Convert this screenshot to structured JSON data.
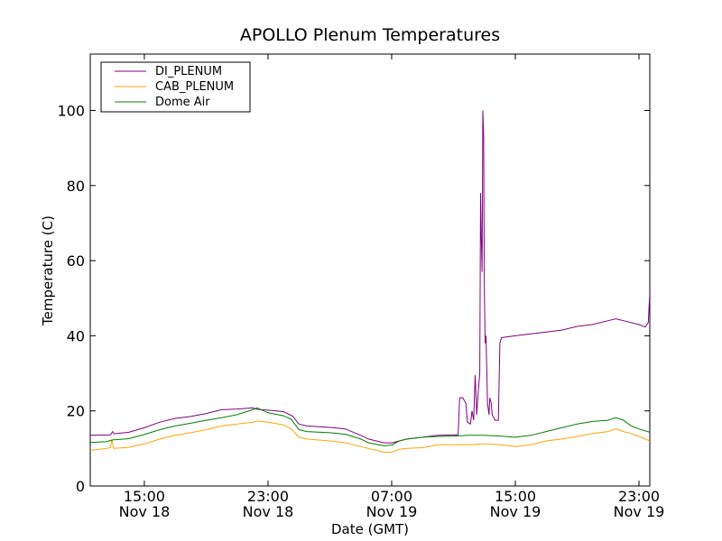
{
  "chart_data": {
    "type": "line",
    "title": "APOLLO Plenum Temperatures",
    "xlabel": "Date (GMT)",
    "ylabel": "Temperature (C)",
    "x_unit": "hours since Nov 18 00:00 GMT",
    "xlim": [
      11.5,
      47.7
    ],
    "ylim": [
      0,
      115
    ],
    "yticks": [
      0,
      20,
      40,
      60,
      80,
      100
    ],
    "xticks": [
      {
        "x": 15,
        "time": "15:00",
        "date": "Nov 18"
      },
      {
        "x": 23,
        "time": "23:00",
        "date": "Nov 18"
      },
      {
        "x": 31,
        "time": "07:00",
        "date": "Nov 19"
      },
      {
        "x": 39,
        "time": "15:00",
        "date": "Nov 19"
      },
      {
        "x": 47,
        "time": "23:00",
        "date": "Nov 19"
      }
    ],
    "legend_position": "top-left",
    "series": [
      {
        "name": "DI_PLENUM",
        "color": "#800080",
        "points": [
          [
            11.5,
            13.5
          ],
          [
            12.8,
            13.6
          ],
          [
            12.95,
            14.5
          ],
          [
            13.05,
            13.9
          ],
          [
            14,
            14.3
          ],
          [
            15,
            15.5
          ],
          [
            16,
            17.0
          ],
          [
            17,
            18.0
          ],
          [
            18,
            18.5
          ],
          [
            19,
            19.3
          ],
          [
            20,
            20.3
          ],
          [
            21,
            20.5
          ],
          [
            22,
            20.8
          ],
          [
            22.3,
            20.4
          ],
          [
            23,
            20.2
          ],
          [
            24,
            19.8
          ],
          [
            24.6,
            18.6
          ],
          [
            25,
            16.5
          ],
          [
            25.5,
            16.0
          ],
          [
            27,
            15.6
          ],
          [
            28,
            15.2
          ],
          [
            29,
            13.5
          ],
          [
            29.5,
            12.5
          ],
          [
            30.5,
            11.5
          ],
          [
            31,
            11.5
          ],
          [
            31.5,
            12.0
          ],
          [
            32,
            12.5
          ],
          [
            33,
            13.0
          ],
          [
            34,
            13.5
          ],
          [
            35,
            13.6
          ],
          [
            35.3,
            13.6
          ],
          [
            35.4,
            23.5
          ],
          [
            35.6,
            23.5
          ],
          [
            35.8,
            22.0
          ],
          [
            35.9,
            17.0
          ],
          [
            36.1,
            16.5
          ],
          [
            36.2,
            20.0
          ],
          [
            36.3,
            17.5
          ],
          [
            36.4,
            29.5
          ],
          [
            36.5,
            19.0
          ],
          [
            36.6,
            25.0
          ],
          [
            36.7,
            30.0
          ],
          [
            36.75,
            78.0
          ],
          [
            36.8,
            66.0
          ],
          [
            36.85,
            57.0
          ],
          [
            36.9,
            100.0
          ],
          [
            36.95,
            93.0
          ],
          [
            37.0,
            52.0
          ],
          [
            37.05,
            38.0
          ],
          [
            37.1,
            40.0
          ],
          [
            37.2,
            22.0
          ],
          [
            37.3,
            19.0
          ],
          [
            37.35,
            23.5
          ],
          [
            37.45,
            22.0
          ],
          [
            37.5,
            19.0
          ],
          [
            37.7,
            17.5
          ],
          [
            37.9,
            17.5
          ],
          [
            38.0,
            38.0
          ],
          [
            38.1,
            39.5
          ],
          [
            39,
            40.0
          ],
          [
            40,
            40.5
          ],
          [
            41,
            41.0
          ],
          [
            42,
            41.5
          ],
          [
            43,
            42.5
          ],
          [
            44,
            43.0
          ],
          [
            45,
            44.0
          ],
          [
            45.5,
            44.5
          ],
          [
            46,
            44.0
          ],
          [
            47,
            43.0
          ],
          [
            47.4,
            42.3
          ],
          [
            47.6,
            43.5
          ],
          [
            47.7,
            51.5
          ]
        ]
      },
      {
        "name": "CAB_PLENUM",
        "color": "#ffa500",
        "points": [
          [
            11.5,
            9.5
          ],
          [
            12.6,
            10.0
          ],
          [
            12.8,
            10.2
          ],
          [
            12.9,
            12.5
          ],
          [
            13.0,
            10.0
          ],
          [
            14,
            10.3
          ],
          [
            15,
            11.2
          ],
          [
            16,
            12.5
          ],
          [
            17,
            13.5
          ],
          [
            18,
            14.2
          ],
          [
            19,
            15.0
          ],
          [
            20,
            16.0
          ],
          [
            21,
            16.5
          ],
          [
            22,
            17.0
          ],
          [
            22.3,
            17.3
          ],
          [
            23,
            17.0
          ],
          [
            24,
            16.3
          ],
          [
            24.5,
            15.2
          ],
          [
            25,
            13.0
          ],
          [
            25.5,
            12.5
          ],
          [
            27,
            12.0
          ],
          [
            28,
            11.5
          ],
          [
            29,
            10.5
          ],
          [
            30,
            9.5
          ],
          [
            30.5,
            9.0
          ],
          [
            31,
            9.0
          ],
          [
            31.5,
            9.8
          ],
          [
            32,
            10.0
          ],
          [
            33,
            10.2
          ],
          [
            34,
            11.0
          ],
          [
            35,
            11.0
          ],
          [
            36,
            11.0
          ],
          [
            37,
            11.2
          ],
          [
            38,
            11.0
          ],
          [
            39,
            10.5
          ],
          [
            40,
            11.0
          ],
          [
            41,
            12.0
          ],
          [
            42,
            12.5
          ],
          [
            43,
            13.2
          ],
          [
            44,
            14.0
          ],
          [
            45,
            14.5
          ],
          [
            45.5,
            15.2
          ],
          [
            46,
            14.5
          ],
          [
            46.5,
            14.0
          ],
          [
            47,
            13.2
          ],
          [
            47.7,
            12.0
          ]
        ]
      },
      {
        "name": "Dome Air",
        "color": "#008000",
        "points": [
          [
            11.5,
            11.6
          ],
          [
            12.5,
            11.8
          ],
          [
            13,
            12.3
          ],
          [
            14,
            12.6
          ],
          [
            15,
            13.7
          ],
          [
            16,
            15.0
          ],
          [
            17,
            16.0
          ],
          [
            18,
            16.7
          ],
          [
            19,
            17.5
          ],
          [
            20,
            18.2
          ],
          [
            21,
            19.0
          ],
          [
            22,
            20.3
          ],
          [
            22.3,
            20.8
          ],
          [
            23,
            19.5
          ],
          [
            24,
            18.7
          ],
          [
            24.5,
            17.8
          ],
          [
            25,
            15.0
          ],
          [
            25.5,
            14.5
          ],
          [
            27,
            14.2
          ],
          [
            28,
            13.8
          ],
          [
            29,
            12.5
          ],
          [
            29.5,
            11.5
          ],
          [
            30.5,
            10.7
          ],
          [
            31,
            10.9
          ],
          [
            31.5,
            12.0
          ],
          [
            32,
            12.5
          ],
          [
            33,
            13.0
          ],
          [
            34,
            13.2
          ],
          [
            35,
            13.3
          ],
          [
            36,
            13.5
          ],
          [
            37,
            13.5
          ],
          [
            38,
            13.3
          ],
          [
            39,
            13.0
          ],
          [
            40,
            13.5
          ],
          [
            41,
            14.5
          ],
          [
            42,
            15.5
          ],
          [
            43,
            16.5
          ],
          [
            44,
            17.2
          ],
          [
            45,
            17.5
          ],
          [
            45.5,
            18.2
          ],
          [
            46,
            17.5
          ],
          [
            46.5,
            16.0
          ],
          [
            47,
            15.2
          ],
          [
            47.7,
            14.3
          ]
        ]
      }
    ]
  }
}
